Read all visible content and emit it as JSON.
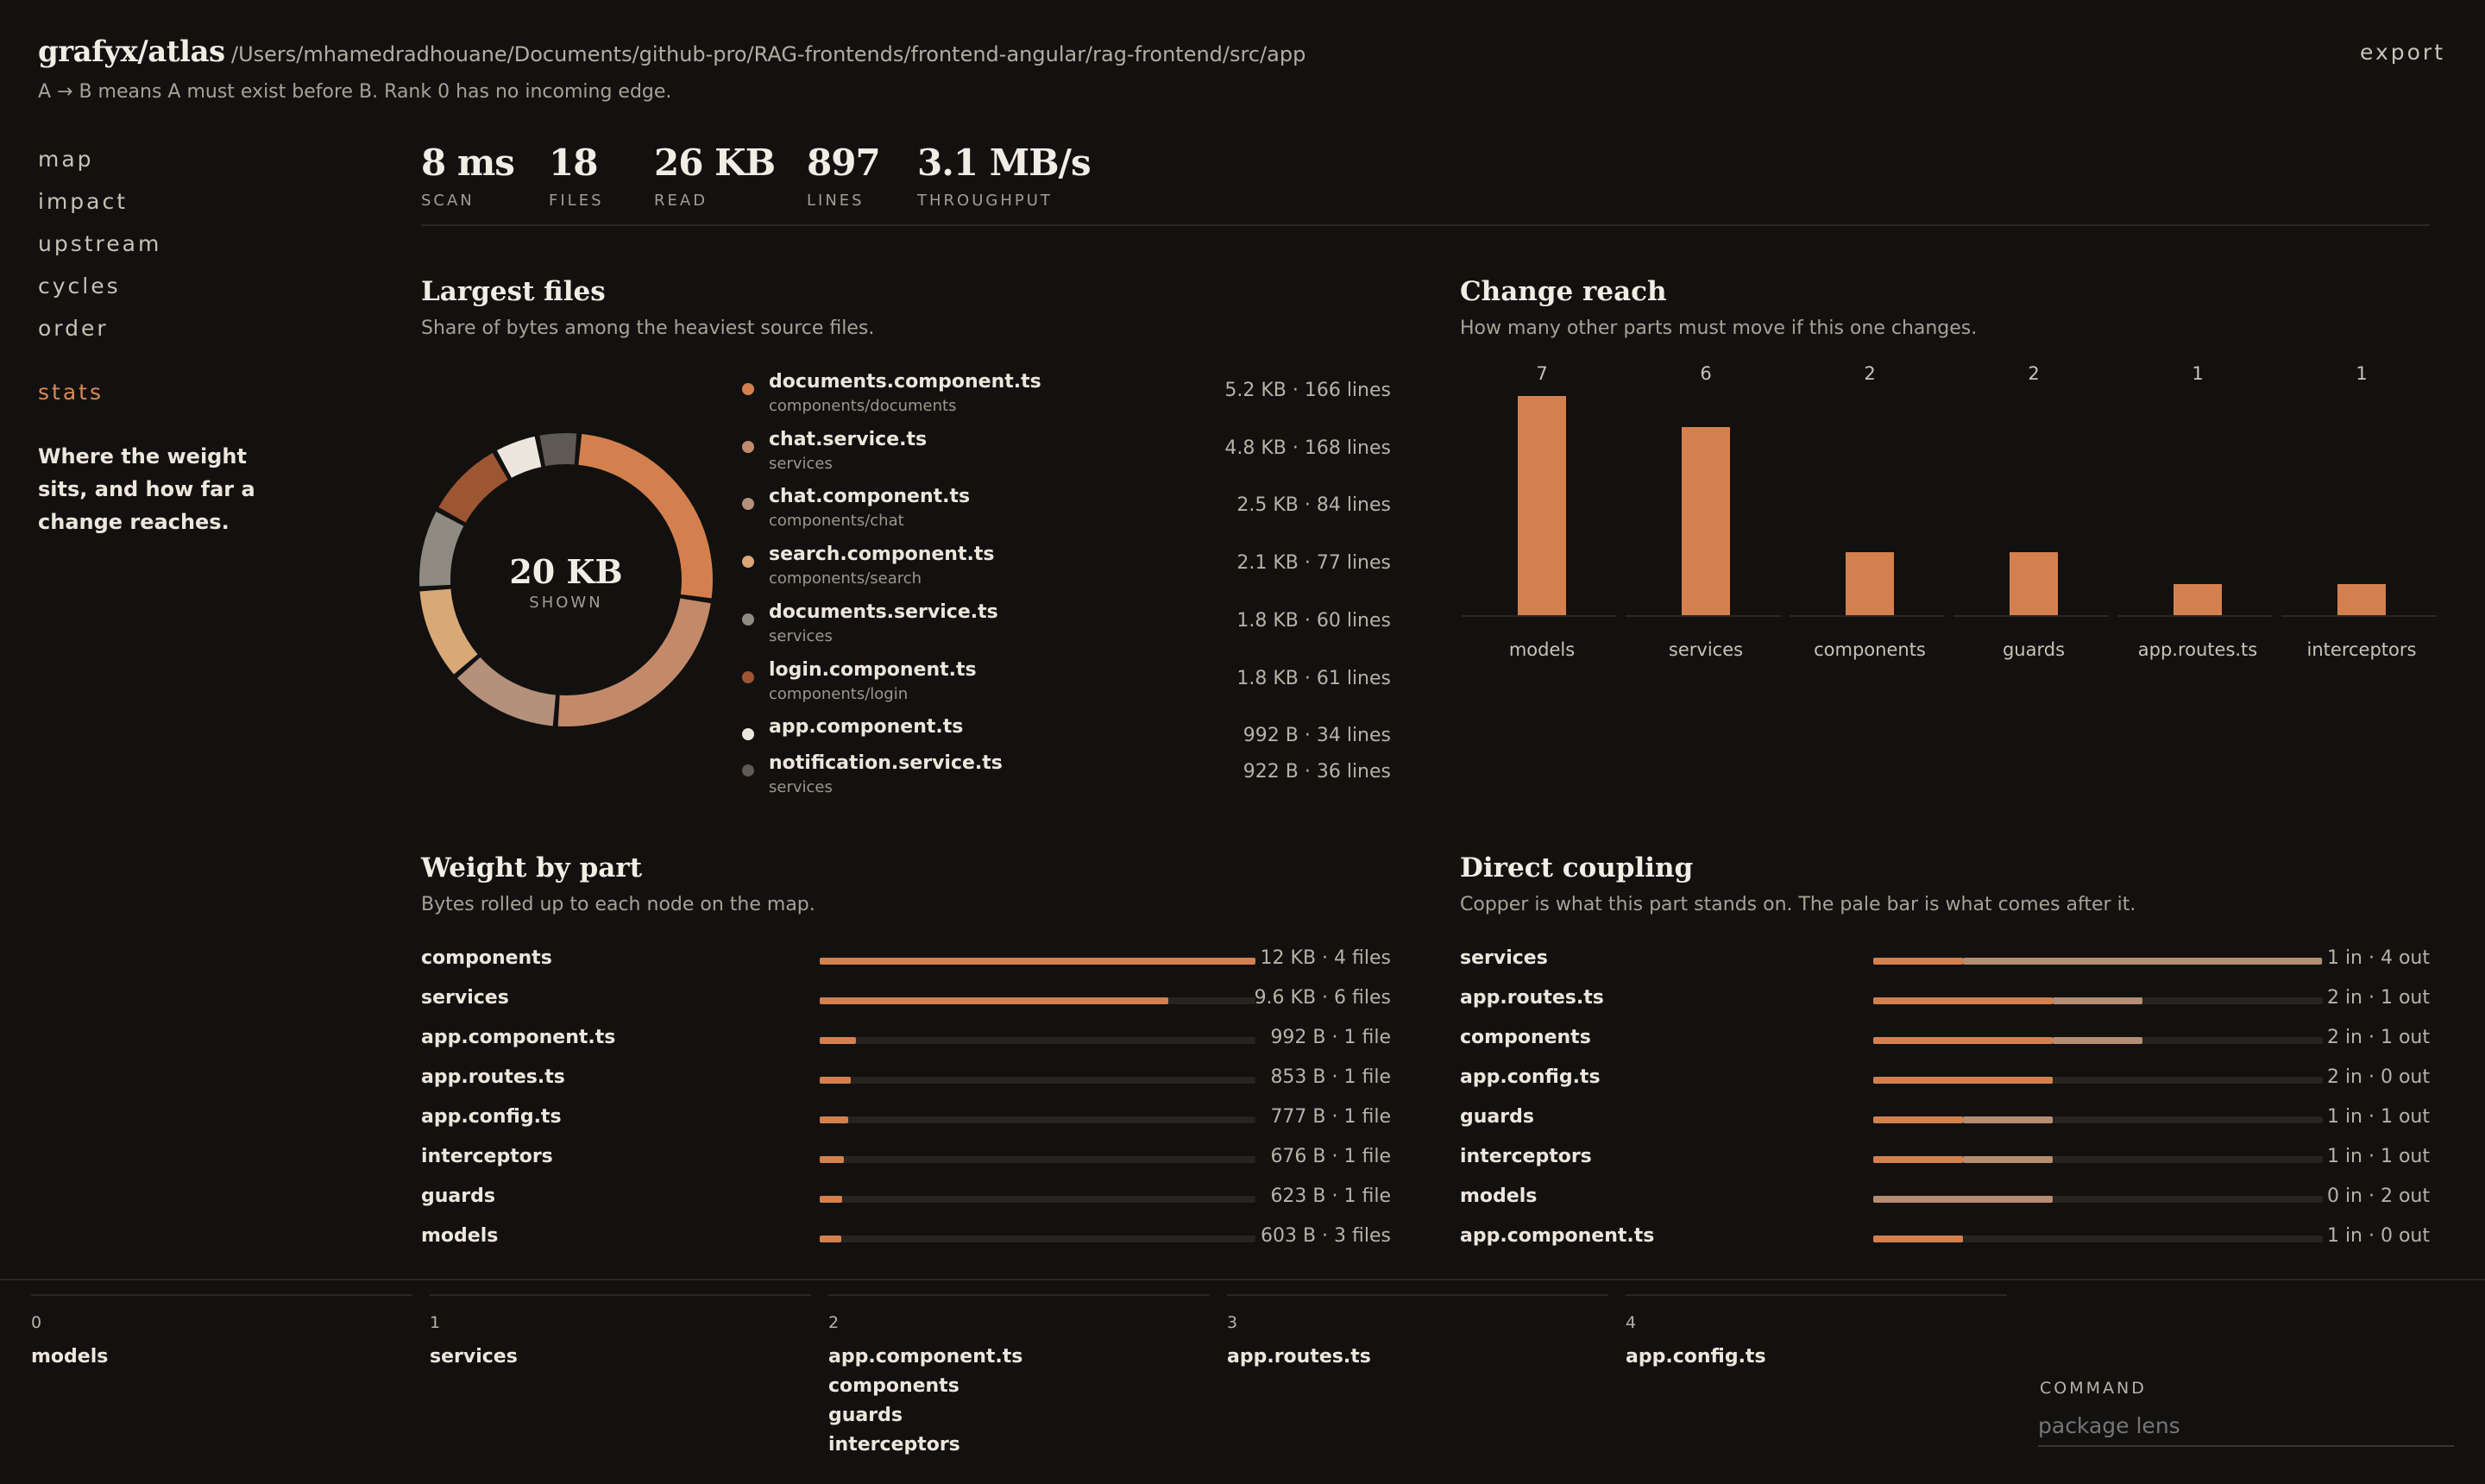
{
  "header": {
    "brand": "grafyx/atlas",
    "path": "/Users/mhamedradhouane/Documents/github-pro/RAG-frontends/frontend-angular/rag-frontend/src/app",
    "note": "A → B means A must exist before B. Rank 0 has no incoming edge.",
    "export_label": "export"
  },
  "nav": {
    "items": [
      "map",
      "impact",
      "upstream",
      "cycles",
      "order"
    ],
    "active": "stats",
    "description": "Where the weight sits, and how far a change reaches."
  },
  "stats": [
    {
      "value": "8 ms",
      "label": "SCAN"
    },
    {
      "value": "18",
      "label": "FILES"
    },
    {
      "value": "26 KB",
      "label": "READ"
    },
    {
      "value": "897",
      "label": "LINES"
    },
    {
      "value": "3.1 MB/s",
      "label": "THROUGHPUT"
    }
  ],
  "largest_files": {
    "title": "Largest files",
    "subtitle": "Share of bytes among the heaviest source files.",
    "center_value": "20 KB",
    "center_label": "SHOWN",
    "items": [
      {
        "name": "documents.component.ts",
        "dir": "components/documents",
        "meta": "5.2 KB · 166 lines",
        "color": "#d4804e"
      },
      {
        "name": "chat.service.ts",
        "dir": "services",
        "meta": "4.8 KB · 168 lines",
        "color": "#c38a6a"
      },
      {
        "name": "chat.component.ts",
        "dir": "components/chat",
        "meta": "2.5 KB · 84 lines",
        "color": "#b5907a"
      },
      {
        "name": "search.component.ts",
        "dir": "components/search",
        "meta": "2.1 KB · 77 lines",
        "color": "#d9a877"
      },
      {
        "name": "documents.service.ts",
        "dir": "services",
        "meta": "1.8 KB · 60 lines",
        "color": "#8f8a82"
      },
      {
        "name": "login.component.ts",
        "dir": "components/login",
        "meta": "1.8 KB · 61 lines",
        "color": "#9d5632"
      },
      {
        "name": "app.component.ts",
        "dir": "",
        "meta": "992 B · 34 lines",
        "color": "#ece6dc"
      },
      {
        "name": "notification.service.ts",
        "dir": "services",
        "meta": "922 B · 36 lines",
        "color": "#5e5a53"
      }
    ]
  },
  "change_reach": {
    "title": "Change reach",
    "subtitle": "How many other parts must move if this one changes."
  },
  "chart_data": {
    "type": "bar",
    "categories": [
      "models",
      "services",
      "components",
      "guards",
      "app.routes.ts",
      "interceptors"
    ],
    "values": [
      7,
      6,
      2,
      2,
      1,
      1
    ],
    "ylim": [
      0,
      7
    ]
  },
  "weight_by_part": {
    "title": "Weight by part",
    "subtitle": "Bytes rolled up to each node on the map.",
    "rows": [
      {
        "name": "components",
        "meta": "12 KB · 4 files",
        "fraction": 1.0
      },
      {
        "name": "services",
        "meta": "9.6 KB · 6 files",
        "fraction": 0.8
      },
      {
        "name": "app.component.ts",
        "meta": "992 B · 1 file",
        "fraction": 0.083
      },
      {
        "name": "app.routes.ts",
        "meta": "853 B · 1 file",
        "fraction": 0.071
      },
      {
        "name": "app.config.ts",
        "meta": "777 B · 1 file",
        "fraction": 0.065
      },
      {
        "name": "interceptors",
        "meta": "676 B · 1 file",
        "fraction": 0.056
      },
      {
        "name": "guards",
        "meta": "623 B · 1 file",
        "fraction": 0.052
      },
      {
        "name": "models",
        "meta": "603 B · 3 files",
        "fraction": 0.05
      }
    ]
  },
  "direct_coupling": {
    "title": "Direct coupling",
    "subtitle": "Copper is what this part stands on. The pale bar is what comes after it.",
    "rows": [
      {
        "name": "services",
        "meta": "1 in · 4 out",
        "in": 1,
        "out": 4
      },
      {
        "name": "app.routes.ts",
        "meta": "2 in · 1 out",
        "in": 2,
        "out": 1
      },
      {
        "name": "components",
        "meta": "2 in · 1 out",
        "in": 2,
        "out": 1
      },
      {
        "name": "app.config.ts",
        "meta": "2 in · 0 out",
        "in": 2,
        "out": 0
      },
      {
        "name": "guards",
        "meta": "1 in · 1 out",
        "in": 1,
        "out": 1
      },
      {
        "name": "interceptors",
        "meta": "1 in · 1 out",
        "in": 1,
        "out": 1
      },
      {
        "name": "models",
        "meta": "0 in · 2 out",
        "in": 0,
        "out": 2
      },
      {
        "name": "app.component.ts",
        "meta": "1 in · 0 out",
        "in": 1,
        "out": 0
      }
    ]
  },
  "order_columns": [
    {
      "rank": "0",
      "items": [
        "models"
      ]
    },
    {
      "rank": "1",
      "items": [
        "services"
      ]
    },
    {
      "rank": "2",
      "items": [
        "app.component.ts",
        "components",
        "guards",
        "interceptors"
      ]
    },
    {
      "rank": "3",
      "items": [
        "app.routes.ts"
      ]
    },
    {
      "rank": "4",
      "items": [
        "app.config.ts"
      ]
    }
  ],
  "command": {
    "label": "COMMAND",
    "placeholder": "package lens"
  }
}
